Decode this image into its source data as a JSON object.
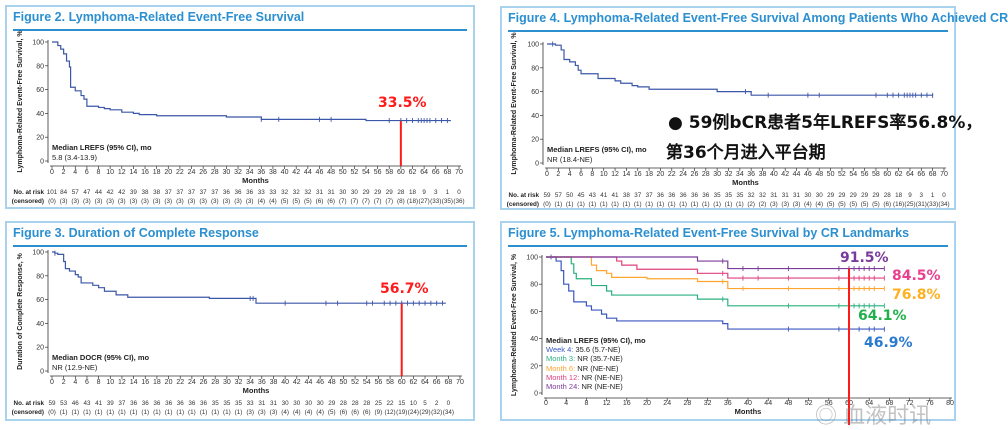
{
  "colors": {
    "curve": "#3b57a8",
    "title": "#2b8fd0",
    "annotation": "#ff1a1a",
    "week4": "#3b57c0",
    "month3": "#2ab07f",
    "month6": "#ffa530",
    "month12": "#e0407f",
    "month24": "#7a3b9a"
  },
  "chart_data": [
    {
      "type": "line",
      "title": "Figure 2. Lymphoma-Related Event-Free Survival",
      "ylabel": "Lymphoma-Related Event-Free Survival, %",
      "xlabel": "Months",
      "xlim": [
        0,
        70
      ],
      "ylim": [
        0,
        100
      ],
      "xtick_step": 2,
      "yticks": [
        0,
        20,
        40,
        60,
        80,
        100
      ],
      "median_label": "Median LREFS (95% CI), mo",
      "median_value": "5.8 (3.4-13.9)",
      "series": [
        {
          "steps": [
            [
              0,
              100
            ],
            [
              1,
              97
            ],
            [
              1.5,
              94
            ],
            [
              2,
              90
            ],
            [
              2.5,
              84
            ],
            [
              3,
              79
            ],
            [
              3.2,
              62
            ],
            [
              4,
              59
            ],
            [
              5,
              55
            ],
            [
              5.5,
              52
            ],
            [
              6,
              46
            ],
            [
              8,
              45
            ],
            [
              9,
              44
            ],
            [
              10,
              43
            ],
            [
              12,
              41
            ],
            [
              14,
              40
            ],
            [
              15,
              39
            ],
            [
              18,
              38
            ],
            [
              30,
              37
            ],
            [
              36,
              35
            ],
            [
              54,
              34
            ],
            [
              68.5,
              33.5
            ]
          ],
          "censored": [
            36,
            39,
            46,
            48,
            58,
            60,
            61,
            62,
            63,
            63.5,
            64,
            64.5,
            65,
            66,
            67,
            68
          ]
        }
      ],
      "annotation": {
        "x": 60,
        "value": 33.5,
        "label": "33.5%"
      },
      "risk_label": "No. at risk",
      "censored_label": "(censored)",
      "at_risk": [
        101,
        84,
        57,
        47,
        44,
        42,
        42,
        39,
        38,
        38,
        37,
        37,
        37,
        37,
        37,
        36,
        36,
        36,
        33,
        33,
        32,
        32,
        32,
        31,
        31,
        30,
        30,
        29,
        29,
        29,
        28,
        18,
        9,
        3,
        1,
        0
      ],
      "censored_counts": [
        0,
        3,
        3,
        3,
        3,
        3,
        3,
        3,
        3,
        3,
        3,
        3,
        3,
        3,
        3,
        3,
        3,
        3,
        4,
        4,
        5,
        5,
        5,
        6,
        6,
        7,
        7,
        7,
        7,
        7,
        8,
        18,
        27,
        33,
        35,
        36
      ]
    },
    {
      "type": "line",
      "title": "Figure 3. Duration of Complete Response",
      "ylabel": "Duration of Complete Response, %",
      "xlabel": "Months",
      "xlim": [
        0,
        70
      ],
      "ylim": [
        0,
        100
      ],
      "xtick_step": 2,
      "yticks": [
        0,
        20,
        40,
        60,
        80,
        100
      ],
      "median_label": "Median DOCR (95% CI), mo",
      "median_value": "NR (12.9-NE)",
      "series": [
        {
          "steps": [
            [
              0,
              100
            ],
            [
              0.5,
              99
            ],
            [
              1,
              98
            ],
            [
              2,
              92
            ],
            [
              2.3,
              86
            ],
            [
              3,
              84
            ],
            [
              4,
              81
            ],
            [
              4.5,
              79
            ],
            [
              5,
              74
            ],
            [
              7,
              72
            ],
            [
              8,
              70
            ],
            [
              9,
              67
            ],
            [
              11,
              64
            ],
            [
              13,
              62
            ],
            [
              27,
              61
            ],
            [
              35,
              57
            ],
            [
              67.5,
              56.7
            ]
          ],
          "censored": [
            0.5,
            34,
            34.5,
            40,
            47,
            49,
            54,
            55,
            57,
            58,
            59,
            60,
            61,
            62,
            63,
            64,
            65,
            66,
            67
          ]
        }
      ],
      "annotation": {
        "x": 60,
        "value": 56.7,
        "label": "56.7%"
      },
      "risk_label": "No. at risk",
      "censored_label": "(censored)",
      "at_risk": [
        59,
        53,
        46,
        43,
        41,
        39,
        37,
        36,
        36,
        36,
        36,
        36,
        36,
        36,
        35,
        35,
        35,
        33,
        31,
        31,
        30,
        30,
        30,
        30,
        29,
        28,
        28,
        28,
        25,
        22,
        15,
        10,
        5,
        2,
        0
      ],
      "censored_counts": [
        0,
        1,
        1,
        1,
        1,
        1,
        1,
        1,
        1,
        1,
        1,
        1,
        1,
        1,
        1,
        1,
        1,
        3,
        3,
        3,
        4,
        4,
        4,
        4,
        5,
        6,
        6,
        6,
        9,
        12,
        19,
        24,
        29,
        32,
        34
      ]
    },
    {
      "type": "line",
      "title": "Figure 4. Lymphoma-Related Event-Free Survival Among Patients Who Achieved CR",
      "ylabel": "Lymphoma-Related Event-Free Survival, %",
      "xlabel": "Months",
      "xlim": [
        0,
        70
      ],
      "ylim": [
        0,
        100
      ],
      "xtick_step": 2,
      "yticks": [
        0,
        20,
        40,
        60,
        80,
        100
      ],
      "median_label": "Median LREFS (95% CI), mo",
      "median_value": "NR (18.4-NE)",
      "series": [
        {
          "steps": [
            [
              0,
              100
            ],
            [
              1.5,
              99
            ],
            [
              2.5,
              95
            ],
            [
              3,
              87
            ],
            [
              4,
              85
            ],
            [
              5,
              82
            ],
            [
              5.5,
              78
            ],
            [
              6,
              75
            ],
            [
              9,
              71
            ],
            [
              12,
              69
            ],
            [
              13,
              67
            ],
            [
              15,
              65
            ],
            [
              16,
              64
            ],
            [
              18,
              62
            ],
            [
              30,
              60
            ],
            [
              36,
              57
            ],
            [
              68,
              56.8
            ]
          ],
          "censored": [
            1,
            35,
            39,
            46,
            48,
            58,
            60,
            61,
            62,
            63,
            63.5,
            64,
            64.5,
            65,
            66,
            67,
            68
          ]
        }
      ],
      "annotation_text": [
        "59例bCR患者5年LREFS率56.8%，",
        "第36个月进入平台期"
      ],
      "risk_label": "No. at risk",
      "censored_label": "(censored)",
      "at_risk": [
        59,
        57,
        50,
        45,
        43,
        41,
        41,
        38,
        37,
        37,
        36,
        36,
        36,
        36,
        36,
        35,
        35,
        35,
        32,
        32,
        31,
        31,
        31,
        30,
        30,
        29,
        29,
        29,
        29,
        29,
        28,
        18,
        9,
        3,
        1,
        0
      ],
      "censored_counts": [
        0,
        1,
        1,
        1,
        1,
        1,
        1,
        1,
        1,
        1,
        1,
        1,
        1,
        1,
        1,
        1,
        1,
        1,
        2,
        2,
        3,
        3,
        3,
        4,
        4,
        5,
        5,
        5,
        5,
        5,
        6,
        16,
        25,
        31,
        33,
        34
      ]
    },
    {
      "type": "line",
      "title": "Figure 5. Lymphoma-Related Event-Free Survival by CR Landmarks",
      "ylabel": "Lymphoma-Related Event-Free Survival, %",
      "xlabel": "Months",
      "xlim": [
        0,
        80
      ],
      "ylim": [
        0,
        100
      ],
      "xtick_step": 4,
      "yticks": [
        0,
        20,
        40,
        60,
        80,
        100
      ],
      "median_label": "Median LREFS (95% CI), mo",
      "series": [
        {
          "name": "Week 4:",
          "median": "35.6 (5.7-NE)",
          "color": "#3b57c0",
          "final_label": "46.9%",
          "steps": [
            [
              0,
              100
            ],
            [
              2,
              97
            ],
            [
              3,
              90
            ],
            [
              3.5,
              80
            ],
            [
              4.5,
              75
            ],
            [
              5.5,
              67
            ],
            [
              8,
              64
            ],
            [
              9,
              61
            ],
            [
              11,
              58
            ],
            [
              12,
              55
            ],
            [
              14,
              53
            ],
            [
              35,
              51
            ],
            [
              36,
              47
            ],
            [
              67,
              46.9
            ]
          ],
          "censored": [
            1,
            48,
            58,
            60,
            62,
            64,
            65,
            67
          ]
        },
        {
          "name": "Month 3:",
          "median": "NR (35.7-NE)",
          "color": "#2ab07f",
          "final_label": "64.1%",
          "steps": [
            [
              0,
              100
            ],
            [
              5,
              95
            ],
            [
              5.5,
              88
            ],
            [
              6,
              84
            ],
            [
              9,
              79
            ],
            [
              12,
              75
            ],
            [
              13,
              72
            ],
            [
              30,
              69
            ],
            [
              36,
              64.1
            ],
            [
              67,
              64.1
            ]
          ],
          "censored": [
            35,
            48,
            58,
            60,
            61,
            62,
            63,
            64,
            65,
            67
          ]
        },
        {
          "name": "Month 6:",
          "median": "NR (NE-NE)",
          "color": "#ffa530",
          "final_label": "76.8%",
          "steps": [
            [
              0,
              100
            ],
            [
              9,
              94
            ],
            [
              10,
              90
            ],
            [
              12,
              88
            ],
            [
              13,
              85
            ],
            [
              20,
              84
            ],
            [
              30,
              82
            ],
            [
              36,
              76.8
            ],
            [
              67,
              76.8
            ]
          ],
          "censored": [
            35,
            39,
            48,
            58,
            60,
            61,
            62,
            63,
            64,
            65,
            67
          ]
        },
        {
          "name": "Month 12:",
          "median": "NR (NE-NE)",
          "color": "#e0407f",
          "final_label": "84.5%",
          "steps": [
            [
              0,
              100
            ],
            [
              14,
              97
            ],
            [
              15,
              94
            ],
            [
              18,
              91
            ],
            [
              30,
              88
            ],
            [
              36,
              84.5
            ],
            [
              67,
              84.5
            ]
          ],
          "censored": [
            35,
            39,
            42,
            48,
            58,
            60,
            61,
            62,
            63,
            64,
            65,
            67
          ]
        },
        {
          "name": "Month 24:",
          "median": "NR (NE-NE)",
          "color": "#7a3b9a",
          "final_label": "91.5%",
          "steps": [
            [
              0,
              100
            ],
            [
              30,
              97
            ],
            [
              36,
              91.5
            ],
            [
              67,
              91.5
            ]
          ],
          "censored": [
            35,
            39,
            42,
            48,
            58,
            60,
            61,
            62,
            63,
            64,
            65,
            67
          ]
        }
      ],
      "annotation": {
        "x": 60,
        "value": 91.5
      }
    }
  ],
  "watermark": "血液时讯"
}
